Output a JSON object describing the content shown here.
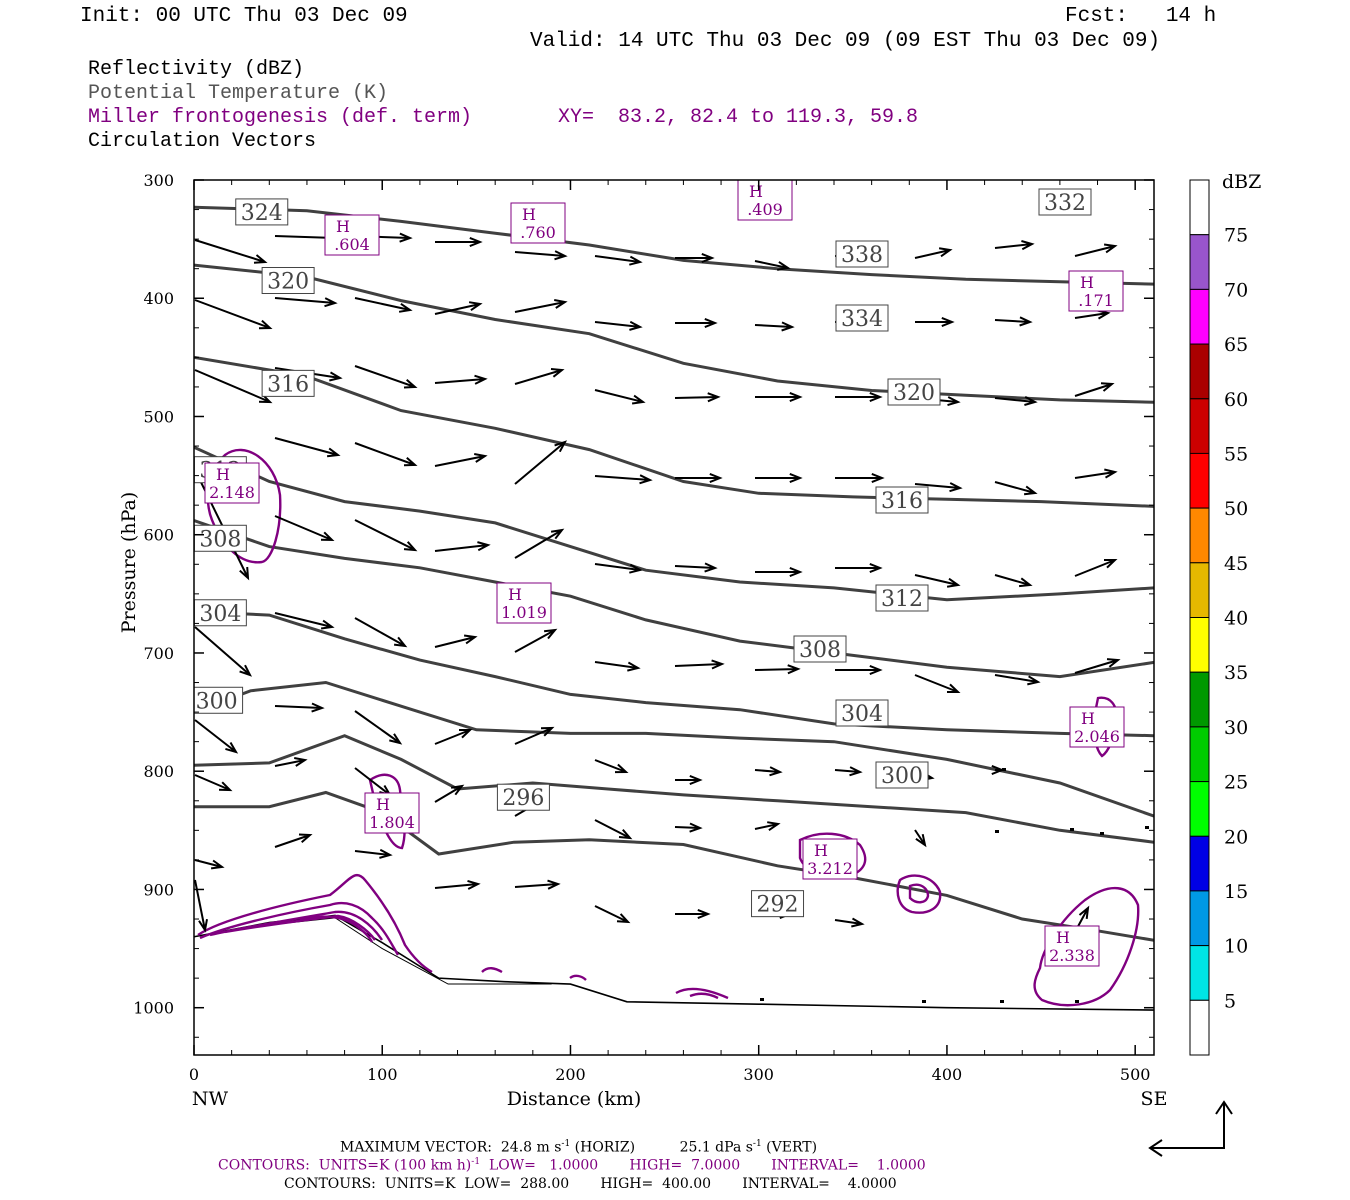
{
  "header": {
    "init": "Init: 00 UTC Thu 03 Dec 09",
    "fcst": "Fcst:   14 h",
    "valid": "Valid: 14 UTC Thu 03 Dec 09 (09 EST Thu 03 Dec 09)",
    "field1": "Reflectivity (dBZ)",
    "field2": "Potential Temperature (K)",
    "field3": "Miller frontogenesis (def. term)",
    "xy": "XY=  83.2, 82.4 to 119.3, 59.8",
    "field4": "Circulation Vectors"
  },
  "chart_data": {
    "type": "line",
    "xlabel": "Distance (km)",
    "ylabel": "Pressure (hPa)",
    "xlim": [
      0,
      510
    ],
    "ylim": [
      1040,
      300
    ],
    "xticks": [
      0,
      100,
      200,
      300,
      400,
      500
    ],
    "yticks": [
      300,
      400,
      500,
      600,
      700,
      800,
      900,
      1000
    ],
    "x_end_left": "NW",
    "x_end_right": "SE",
    "theta_series": [
      {
        "name": "324",
        "label_at": [
          36,
          327
        ],
        "x": [
          0,
          60,
          110,
          160,
          210,
          260,
          310,
          360,
          410,
          460,
          510
        ],
        "y": [
          323,
          326,
          335,
          345,
          355,
          368,
          375,
          380,
          384,
          386,
          388
        ]
      },
      {
        "name": "320",
        "label_at": [
          50,
          385
        ],
        "x": [
          0,
          60,
          110,
          160,
          210,
          260,
          310,
          360,
          410,
          460,
          510
        ],
        "y": [
          372,
          382,
          402,
          418,
          430,
          455,
          470,
          478,
          482,
          486,
          488
        ]
      },
      {
        "name": "316",
        "label_at": [
          50,
          472
        ],
        "x": [
          0,
          60,
          110,
          160,
          210,
          260,
          300,
          350,
          400,
          450,
          510
        ],
        "y": [
          450,
          466,
          495,
          510,
          528,
          555,
          565,
          568,
          570,
          572,
          576
        ]
      },
      {
        "name": "312",
        "label_at": [
          14,
          545
        ],
        "x": [
          0,
          40,
          80,
          120,
          160,
          200,
          240,
          290,
          340,
          400,
          460,
          510
        ],
        "y": [
          526,
          555,
          572,
          580,
          590,
          610,
          630,
          640,
          645,
          655,
          650,
          645
        ]
      },
      {
        "name": "308",
        "label_at": [
          14,
          603
        ],
        "x": [
          0,
          40,
          80,
          120,
          160,
          200,
          240,
          290,
          340,
          400,
          460,
          510
        ],
        "y": [
          588,
          610,
          620,
          628,
          640,
          652,
          672,
          690,
          700,
          712,
          720,
          708
        ]
      },
      {
        "name": "304",
        "label_at": [
          14,
          666
        ],
        "x": [
          0,
          40,
          80,
          120,
          160,
          200,
          240,
          290,
          340,
          400,
          460,
          510
        ],
        "y": [
          665,
          668,
          688,
          706,
          720,
          735,
          742,
          748,
          760,
          765,
          768,
          770
        ]
      },
      {
        "name": "300",
        "label_at": [
          12,
          740
        ],
        "x": [
          0,
          30,
          70,
          110,
          150,
          200,
          240,
          290,
          340,
          400,
          460,
          510
        ],
        "y": [
          750,
          732,
          725,
          745,
          765,
          768,
          768,
          772,
          775,
          790,
          810,
          838
        ]
      },
      {
        "name": "296",
        "label_at": [
          175,
          822
        ],
        "x": [
          0,
          40,
          80,
          110,
          140,
          180,
          220,
          260,
          310,
          360,
          410,
          460,
          510
        ],
        "y": [
          795,
          793,
          770,
          790,
          815,
          810,
          815,
          820,
          825,
          830,
          835,
          850,
          860
        ]
      },
      {
        "name": "292",
        "label_at": [
          310,
          912
        ],
        "x": [
          0,
          40,
          70,
          100,
          130,
          170,
          210,
          260,
          310,
          350,
          400,
          440,
          480,
          510
        ],
        "y": [
          830,
          830,
          818,
          835,
          870,
          860,
          858,
          862,
          880,
          890,
          905,
          925,
          935,
          943
        ]
      }
    ],
    "frontogenesis_maxima": [
      {
        "label": "H",
        "value": "2.148"
      },
      {
        "label": "H",
        "value": ".604"
      },
      {
        "label": "H",
        "value": ".760"
      },
      {
        "label": "H",
        "value": ".409"
      },
      {
        "label": "H",
        "value": ".171"
      },
      {
        "label": "H",
        "value": "1.019"
      },
      {
        "label": "H",
        "value": "2.046"
      },
      {
        "label": "H",
        "value": "1.804"
      },
      {
        "label": "H",
        "value": "3.212"
      },
      {
        "label": "H",
        "value": "2.338"
      }
    ],
    "colorbar": {
      "title": "dBZ",
      "levels": [
        5,
        10,
        15,
        20,
        25,
        30,
        35,
        40,
        45,
        50,
        55,
        60,
        65,
        70,
        75
      ],
      "colors": [
        "#ffffff",
        "#00e5e5",
        "#0099e5",
        "#0000e5",
        "#00ff00",
        "#00cc00",
        "#009900",
        "#ffff00",
        "#e5b800",
        "#ff8800",
        "#ff0000",
        "#cc0000",
        "#aa0000",
        "#ff00ff",
        "#9955cc",
        "#ffffff"
      ]
    },
    "colors": {
      "theta": "#404040",
      "frontogenesis": "#800080",
      "terrain": "#000000"
    }
  },
  "footer": {
    "maxvec_prefix": "MAXIMUM VECTOR:  24.8 m s",
    "maxvec_mid": " (HORIZ)          25.1 dPa s",
    "maxvec_suffix": " (VERT)",
    "sup": "-1",
    "contours_purple_a": "CONTOURS:  UNITS=K (100 km h)",
    "contours_purple_b": "  LOW=   1.0000       HIGH=  7.0000       INTERVAL=    1.0000",
    "contours_black": "CONTOURS:  UNITS=K  LOW=  288.00       HIGH=  400.00       INTERVAL=    4.0000"
  }
}
